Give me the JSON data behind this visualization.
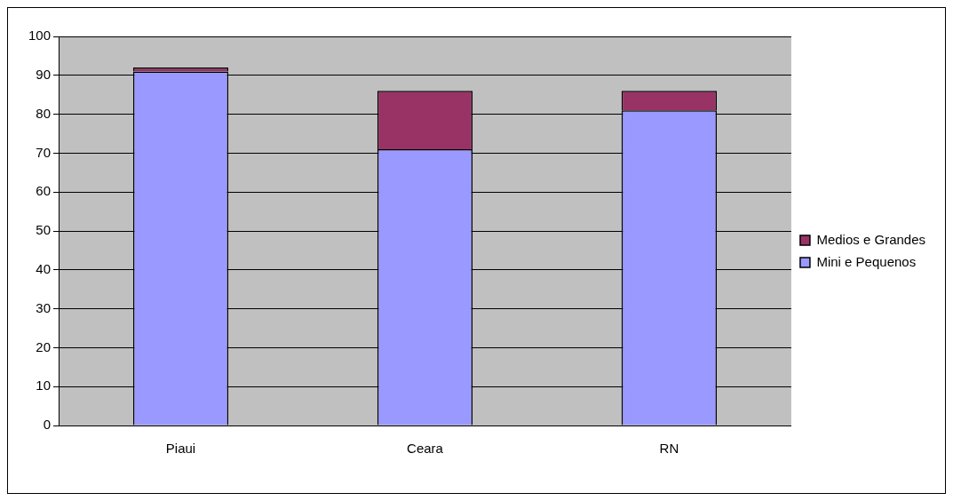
{
  "chart_data": {
    "type": "bar",
    "stacked": true,
    "categories": [
      "Piaui",
      "Ceara",
      "RN"
    ],
    "series": [
      {
        "name": "Mini e Pequenos",
        "color": "#9999ff",
        "values": [
          91,
          71,
          81
        ]
      },
      {
        "name": "Medios e Grandes",
        "color": "#993366",
        "values": [
          1,
          15,
          5
        ]
      }
    ],
    "ylim": [
      0,
      100
    ],
    "yticks": [
      0,
      10,
      20,
      30,
      40,
      50,
      60,
      70,
      80,
      90,
      100
    ],
    "grid": "y",
    "legend": "right"
  }
}
